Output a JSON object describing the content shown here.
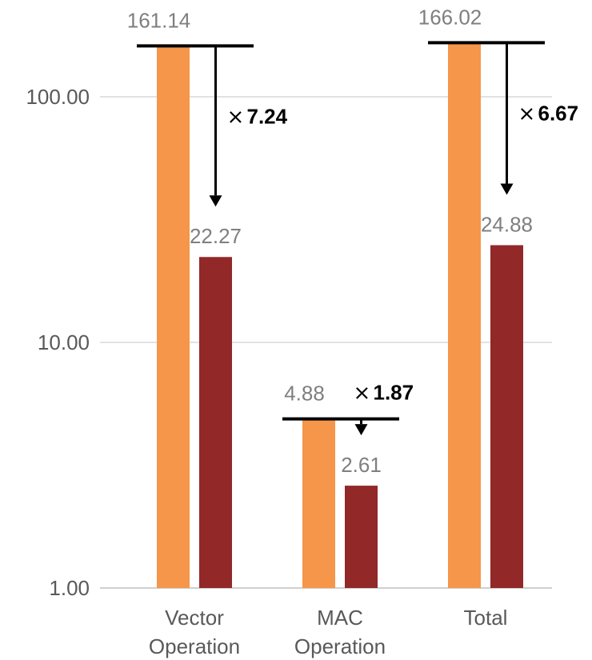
{
  "chart_data": {
    "type": "bar",
    "y_scale": "log",
    "ylim": [
      1,
      300
    ],
    "yticks": [
      {
        "value": 1,
        "label": "1.00"
      },
      {
        "value": 10,
        "label": "10.00"
      },
      {
        "value": 100,
        "label": "100.00"
      }
    ],
    "grid": true,
    "legend": "none",
    "categories": [
      {
        "lines": [
          "Vector",
          "Operation"
        ]
      },
      {
        "lines": [
          "MAC",
          "Operation"
        ]
      },
      {
        "lines": [
          "Total"
        ]
      }
    ],
    "series": [
      {
        "values": [
          161.14,
          4.88,
          166.02
        ],
        "labels": [
          "161.14",
          "4.88",
          "166.02"
        ],
        "color": "#f5964a"
      },
      {
        "values": [
          22.27,
          2.61,
          24.88
        ],
        "labels": [
          "22.27",
          "2.61",
          "24.88"
        ],
        "color": "#922828"
      }
    ],
    "reductions": [
      {
        "mark": "×",
        "value": "7.24"
      },
      {
        "mark": "×",
        "value": "1.87"
      },
      {
        "mark": "×",
        "value": "6.67"
      }
    ],
    "colors": {
      "grid": "#d9d9d9",
      "axis": "#bfbfbf",
      "annotation": "#000000"
    }
  }
}
